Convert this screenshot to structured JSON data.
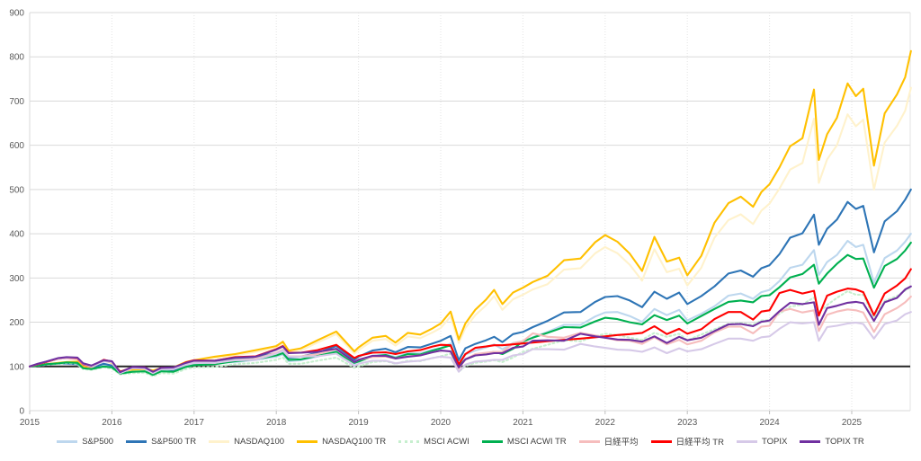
{
  "chart_data": {
    "type": "line",
    "title": "",
    "description": "Stock index performance comparison indexed to 100 at January 2015, price vs total-return (TR) versions",
    "x_axis": {
      "label": "",
      "ticks": [
        2015,
        2016,
        2017,
        2018,
        2019,
        2020,
        2021,
        2022,
        2023,
        2024,
        2025
      ],
      "tick_labels": [
        "2015",
        "2016",
        "2017",
        "2018",
        "2019",
        "2020",
        "2021",
        "2022",
        "2023",
        "2024",
        "2025"
      ]
    },
    "y_axis": {
      "label": "",
      "min": 0,
      "max": 900,
      "step": 100,
      "tick_labels": [
        "0",
        "100",
        "200",
        "300",
        "400",
        "500",
        "600",
        "700",
        "800",
        "900"
      ]
    },
    "grid": "on",
    "legend_position": "bottom",
    "baseline": {
      "value": 100,
      "color": "#262626"
    },
    "colors": {
      "grid": "#d9d9d9",
      "grid_vertical": "#e3e3e3",
      "axis_text": "#595959",
      "legend_text": "#404040"
    },
    "x": [
      2015.0,
      2015.1,
      2015.2,
      2015.35,
      2015.45,
      2015.58,
      2015.65,
      2015.75,
      2015.9,
      2016.0,
      2016.1,
      2016.25,
      2016.4,
      2016.5,
      2016.6,
      2016.75,
      2016.9,
      2017.0,
      2017.25,
      2017.5,
      2017.75,
      2018.0,
      2018.08,
      2018.15,
      2018.3,
      2018.5,
      2018.73,
      2018.95,
      2019.0,
      2019.17,
      2019.33,
      2019.45,
      2019.6,
      2019.75,
      2019.9,
      2020.0,
      2020.12,
      2020.22,
      2020.3,
      2020.42,
      2020.55,
      2020.65,
      2020.75,
      2020.88,
      2021.0,
      2021.12,
      2021.3,
      2021.5,
      2021.7,
      2021.88,
      2022.0,
      2022.15,
      2022.3,
      2022.45,
      2022.6,
      2022.75,
      2022.9,
      2023.0,
      2023.17,
      2023.33,
      2023.5,
      2023.65,
      2023.8,
      2023.9,
      2024.0,
      2024.12,
      2024.25,
      2024.4,
      2024.54,
      2024.6,
      2024.7,
      2024.82,
      2024.95,
      2025.05,
      2025.14,
      2025.27,
      2025.4,
      2025.55,
      2025.65,
      2025.72
    ],
    "series": [
      {
        "name": "S&P500",
        "color": "#BDD7EE",
        "style": "solid",
        "values": [
          100,
          102,
          104,
          106,
          106,
          104,
          96,
          95,
          104,
          100,
          86,
          90,
          92,
          88,
          93,
          90,
          101,
          105,
          107,
          110,
          115,
          122,
          127,
          112,
          114,
          122,
          135,
          106,
          112,
          125,
          128,
          121,
          131,
          130,
          138,
          142,
          152,
          103,
          127,
          136,
          143,
          150,
          139,
          153,
          157,
          166,
          178,
          194,
          194,
          213,
          222,
          223,
          214,
          201,
          230,
          216,
          228,
          204,
          219,
          236,
          260,
          265,
          253,
          268,
          273,
          293,
          323,
          330,
          363,
          307,
          336,
          352,
          384,
          370,
          375,
          289,
          345,
          362,
          382,
          400
        ]
      },
      {
        "name": "S&P500 TR",
        "color": "#2E75B6",
        "style": "solid",
        "values": [
          100,
          102,
          104,
          107,
          107,
          105,
          97,
          96,
          106,
          102,
          88,
          92,
          94,
          90,
          95,
          92,
          104,
          109,
          112,
          116,
          122,
          130,
          136,
          120,
          122,
          131,
          146,
          115,
          122,
          136,
          140,
          132,
          144,
          143,
          152,
          158,
          169,
          114,
          141,
          151,
          159,
          167,
          155,
          173,
          178,
          189,
          203,
          222,
          223,
          246,
          257,
          259,
          249,
          234,
          269,
          253,
          267,
          241,
          259,
          281,
          310,
          317,
          303,
          322,
          329,
          354,
          391,
          401,
          443,
          375,
          411,
          432,
          472,
          456,
          463,
          358,
          428,
          451,
          477,
          500
        ]
      },
      {
        "name": "NASDAQ100",
        "color": "#FFF2CC",
        "style": "solid",
        "values": [
          100,
          103,
          105,
          108,
          110,
          110,
          99,
          98,
          113,
          107,
          88,
          92,
          93,
          90,
          95,
          97,
          108,
          112,
          119,
          125,
          133,
          142,
          151,
          132,
          136,
          154,
          173,
          129,
          137,
          158,
          162,
          147,
          168,
          164,
          177,
          187,
          213,
          153,
          187,
          216,
          238,
          259,
          228,
          252,
          262,
          274,
          286,
          319,
          322,
          356,
          370,
          356,
          330,
          294,
          365,
          313,
          321,
          283,
          323,
          391,
          431,
          444,
          422,
          452,
          468,
          502,
          545,
          560,
          660,
          515,
          568,
          600,
          670,
          643,
          658,
          500,
          606,
          644,
          678,
          730
        ]
      },
      {
        "name": "NASDAQ100 TR",
        "color": "#FFC000",
        "style": "solid",
        "values": [
          100,
          103,
          105,
          108,
          110,
          111,
          100,
          99,
          114,
          108,
          89,
          93,
          94,
          91,
          96,
          98,
          110,
          114,
          122,
          128,
          137,
          146,
          156,
          136,
          141,
          159,
          179,
          134,
          143,
          165,
          169,
          154,
          176,
          172,
          186,
          197,
          224,
          161,
          197,
          228,
          251,
          273,
          241,
          267,
          278,
          291,
          305,
          340,
          344,
          381,
          397,
          382,
          355,
          316,
          393,
          337,
          346,
          306,
          350,
          425,
          469,
          484,
          461,
          494,
          512,
          550,
          598,
          616,
          726,
          567,
          625,
          662,
          740,
          711,
          728,
          554,
          672,
          715,
          754,
          813
        ]
      },
      {
        "name": "MSCI ACWI",
        "color": "#C6EFCE",
        "style": "dotted",
        "values": [
          100,
          102,
          104,
          106,
          108,
          106,
          94,
          92,
          98,
          95,
          82,
          85,
          86,
          78,
          85,
          84,
          94,
          98,
          99,
          105,
          108,
          115,
          120,
          106,
          106,
          113,
          120,
          97,
          100,
          110,
          112,
          106,
          113,
          112,
          119,
          123,
          129,
          88,
          101,
          108,
          111,
          114,
          110,
          120,
          133,
          140,
          149,
          159,
          157,
          168,
          174,
          171,
          165,
          160,
          176,
          167,
          174,
          159,
          172,
          184,
          196,
          198,
          194,
          204,
          205,
          219,
          235,
          240,
          256,
          222,
          239,
          255,
          270,
          262,
          262,
          211,
          248,
          259,
          272,
          280
        ]
      },
      {
        "name": "MSCI ACWI TR",
        "color": "#00B050",
        "style": "solid",
        "values": [
          100,
          102,
          105,
          107,
          109,
          108,
          96,
          94,
          100,
          98,
          84,
          88,
          89,
          81,
          89,
          88,
          99,
          103,
          105,
          112,
          116,
          125,
          130,
          115,
          116,
          124,
          133,
          108,
          111,
          123,
          126,
          119,
          128,
          127,
          136,
          141,
          148,
          101,
          116,
          125,
          129,
          133,
          128,
          140,
          156,
          165,
          176,
          189,
          188,
          202,
          210,
          207,
          200,
          195,
          216,
          205,
          215,
          197,
          214,
          230,
          246,
          249,
          245,
          259,
          261,
          279,
          301,
          309,
          330,
          287,
          310,
          332,
          352,
          343,
          344,
          278,
          327,
          343,
          362,
          380
        ]
      },
      {
        "name": "日経平均",
        "color": "#F6BDBD",
        "style": "solid",
        "values": [
          100,
          105,
          110,
          117,
          119,
          117,
          104,
          99,
          113,
          109,
          86,
          96,
          95,
          85,
          94,
          94,
          105,
          110,
          108,
          115,
          117,
          131,
          138,
          123,
          123,
          128,
          139,
          110,
          115,
          121,
          122,
          118,
          123,
          125,
          132,
          136,
          134,
          95,
          116,
          128,
          131,
          133,
          133,
          152,
          157,
          175,
          167,
          165,
          176,
          170,
          165,
          159,
          158,
          151,
          166,
          150,
          160,
          150,
          158,
          177,
          190,
          190,
          175,
          190,
          192,
          224,
          230,
          222,
          227,
          180,
          217,
          224,
          229,
          227,
          222,
          178,
          218,
          232,
          245,
          258
        ]
      },
      {
        "name": "日経平均 TR",
        "color": "#FF0000",
        "style": "solid",
        "values": [
          100,
          105,
          110,
          118,
          120,
          118,
          105,
          100,
          115,
          111,
          88,
          98,
          98,
          87,
          97,
          97,
          109,
          114,
          113,
          121,
          123,
          139,
          146,
          131,
          131,
          137,
          149,
          119,
          124,
          131,
          132,
          128,
          134,
          137,
          145,
          149,
          148,
          105,
          128,
          142,
          145,
          148,
          148,
          150,
          152,
          154,
          157,
          160,
          163,
          166,
          168,
          171,
          173,
          176,
          191,
          173,
          185,
          174,
          184,
          207,
          223,
          223,
          206,
          224,
          227,
          266,
          273,
          265,
          271,
          215,
          260,
          269,
          276,
          274,
          268,
          216,
          265,
          283,
          299,
          320
        ]
      },
      {
        "name": "TOPIX",
        "color": "#D6C9E8",
        "style": "solid",
        "values": [
          100,
          106,
          111,
          118,
          120,
          119,
          106,
          100,
          112,
          110,
          85,
          96,
          95,
          85,
          94,
          94,
          104,
          108,
          108,
          114,
          115,
          129,
          136,
          122,
          122,
          123,
          129,
          101,
          106,
          113,
          113,
          107,
          111,
          113,
          119,
          122,
          120,
          88,
          104,
          111,
          113,
          115,
          115,
          125,
          128,
          139,
          139,
          138,
          151,
          145,
          142,
          138,
          137,
          133,
          143,
          130,
          141,
          134,
          139,
          151,
          163,
          163,
          158,
          166,
          168,
          185,
          200,
          197,
          200,
          158,
          189,
          192,
          197,
          199,
          196,
          163,
          196,
          204,
          218,
          223
        ]
      },
      {
        "name": "TOPIX TR",
        "color": "#7030A0",
        "style": "solid",
        "values": [
          100,
          106,
          111,
          119,
          121,
          120,
          107,
          102,
          114,
          112,
          87,
          99,
          98,
          88,
          97,
          98,
          108,
          113,
          113,
          120,
          122,
          138,
          145,
          130,
          131,
          133,
          140,
          110,
          115,
          124,
          124,
          118,
          122,
          125,
          132,
          136,
          134,
          98,
          116,
          125,
          127,
          130,
          130,
          142,
          145,
          158,
          159,
          158,
          174,
          168,
          165,
          161,
          160,
          156,
          168,
          153,
          167,
          159,
          165,
          180,
          195,
          196,
          191,
          201,
          204,
          225,
          244,
          241,
          245,
          194,
          232,
          237,
          244,
          246,
          243,
          203,
          245,
          255,
          274,
          281
        ]
      }
    ]
  }
}
